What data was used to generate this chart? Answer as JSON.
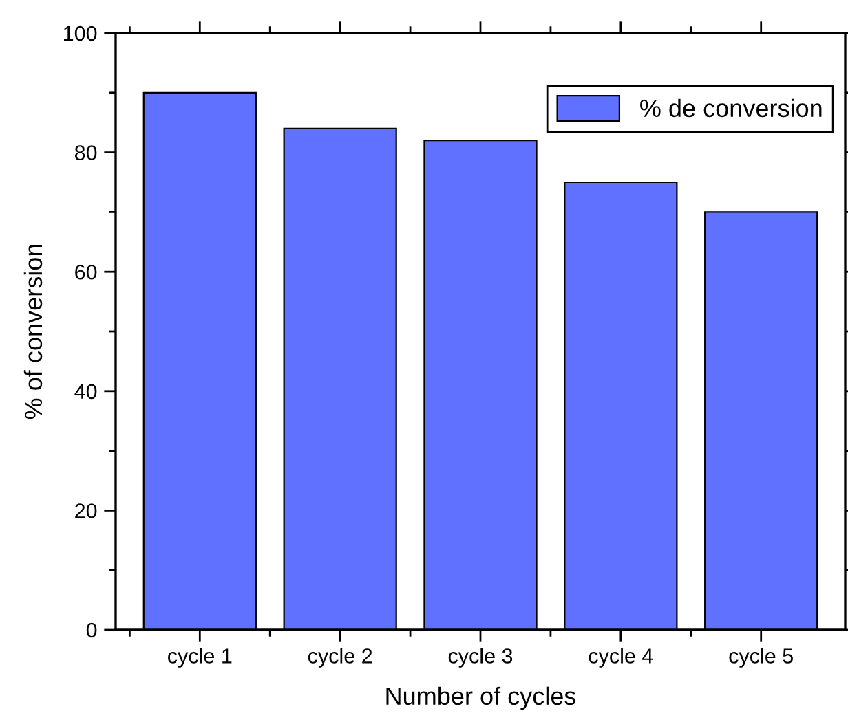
{
  "chart_data": {
    "type": "bar",
    "xlabel": "Number of cycles",
    "ylabel": "% of conversion",
    "categories": [
      "cycle 1",
      "cycle 2",
      "cycle 3",
      "cycle 4",
      "cycle 5"
    ],
    "series": [
      {
        "name": "% de conversion",
        "color": "#6070ff",
        "values": [
          90,
          84,
          82,
          75,
          70
        ]
      }
    ],
    "ylim": [
      0,
      100
    ],
    "yticks": [
      0,
      20,
      40,
      60,
      80,
      100
    ],
    "legend": "top right",
    "grid": false
  }
}
